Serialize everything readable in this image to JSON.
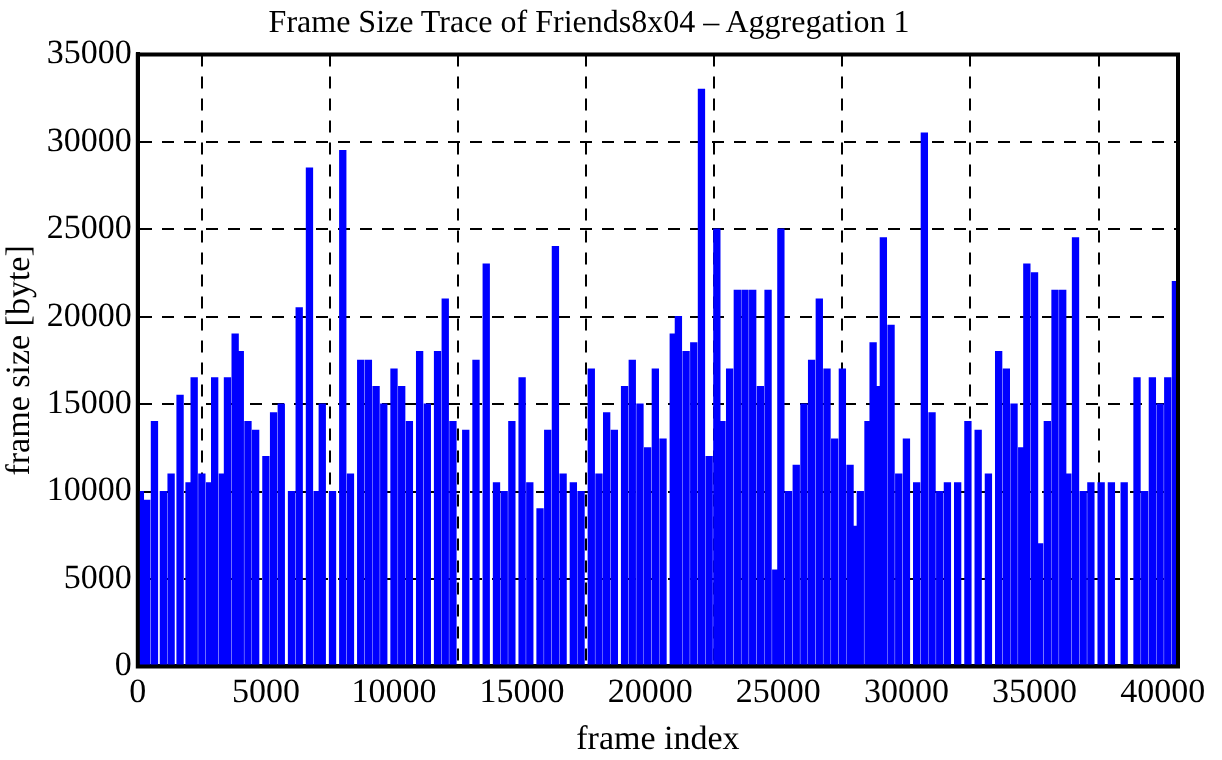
{
  "chart_data": {
    "type": "bar",
    "title": "Frame Size Trace of Friends8x04 – Aggregation 1",
    "xlabel": "frame index",
    "ylabel": "frame size [byte]",
    "x": [
      100,
      350,
      650,
      1000,
      1300,
      1650,
      2000,
      2200,
      2500,
      2800,
      3000,
      3300,
      3500,
      3800,
      4000,
      4300,
      4600,
      5000,
      5300,
      5600,
      6000,
      6300,
      6700,
      7000,
      7200,
      7600,
      8000,
      8300,
      8700,
      9000,
      9300,
      9600,
      10000,
      10300,
      10600,
      11000,
      11300,
      11700,
      12000,
      12300,
      12800,
      13200,
      13600,
      14000,
      14300,
      14600,
      15000,
      15300,
      15700,
      16000,
      16300,
      16600,
      17000,
      17300,
      17700,
      18000,
      18300,
      18600,
      19000,
      19300,
      19600,
      19900,
      20200,
      20500,
      20900,
      21100,
      21400,
      21700,
      22000,
      22300,
      22600,
      22800,
      23100,
      23400,
      23700,
      24000,
      24300,
      24600,
      24900,
      25100,
      25400,
      25700,
      26000,
      26300,
      26600,
      26900,
      27200,
      27500,
      27800,
      28000,
      28200,
      28500,
      28700,
      28900,
      29100,
      29400,
      29700,
      30000,
      30400,
      30700,
      31000,
      31300,
      31600,
      32000,
      32400,
      32800,
      33200,
      33600,
      33900,
      34200,
      34500,
      34700,
      35000,
      35200,
      35500,
      35800,
      36100,
      36300,
      36600,
      36900,
      37200,
      37600,
      38000,
      38500,
      39000,
      39300,
      39600,
      39900,
      40200,
      40500
    ],
    "series": [
      {
        "color": "#0000ff",
        "values": [
          10000,
          9500,
          14000,
          10000,
          11000,
          15500,
          10500,
          16500,
          11000,
          10500,
          16500,
          11000,
          16500,
          19000,
          18000,
          14000,
          13500,
          12000,
          14500,
          15000,
          10000,
          20500,
          28500,
          10000,
          15000,
          10000,
          29500,
          11000,
          17500,
          17500,
          16000,
          15000,
          17000,
          16000,
          14000,
          18000,
          15000,
          18000,
          21000,
          14000,
          13500,
          17500,
          23000,
          10500,
          10000,
          14000,
          16500,
          10500,
          9000,
          13500,
          24000,
          11000,
          10500,
          10000,
          17000,
          11000,
          14500,
          13500,
          16000,
          17500,
          15000,
          12500,
          17000,
          13000,
          19000,
          20000,
          18000,
          18500,
          33000,
          12000,
          25000,
          14000,
          17000,
          21500,
          21500,
          21500,
          16000,
          21500,
          5500,
          25000,
          10000,
          11500,
          15000,
          17500,
          21000,
          17000,
          13000,
          17000,
          11500,
          8000,
          10000,
          14000,
          18500,
          16000,
          24500,
          19500,
          11000,
          13000,
          10500,
          30500,
          14500,
          10000,
          10500,
          10500,
          14000,
          13500,
          11000,
          18000,
          17000,
          15000,
          12500,
          23000,
          22500,
          7000,
          14000,
          21500,
          21500,
          11000,
          24500,
          10000,
          10500,
          10500,
          10500,
          10500,
          16500,
          10000,
          16500,
          15000,
          16500,
          22000
        ]
      }
    ],
    "xlim": [
      0,
      40600
    ],
    "xticks": [
      0,
      5000,
      10000,
      15000,
      20000,
      25000,
      30000,
      35000,
      40000
    ],
    "ylim": [
      0,
      35000
    ],
    "yticks": [
      0,
      5000,
      10000,
      15000,
      20000,
      25000,
      30000,
      35000
    ],
    "grid": true
  }
}
